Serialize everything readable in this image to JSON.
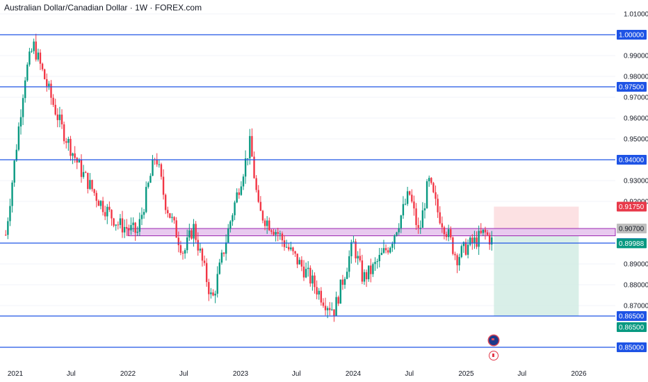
{
  "title": "Australian Dollar/Canadian Dollar · 1W · FOREX.com",
  "colors": {
    "up": "#089981",
    "down": "#f23645",
    "level_line": "#1e53e5",
    "zone_fill": "#e8c9ef",
    "zone_border": "#9c27b0",
    "stop_fill": "#fbd9dc",
    "target_fill": "#d5ede6",
    "grid": "#f0f3fa",
    "axis_text": "#131722"
  },
  "flags": [
    "australia-flag-icon",
    "canada-flag-icon"
  ],
  "chart_data": {
    "type": "candlestick",
    "title": "Australian Dollar/Canadian Dollar · 1W · FOREX.com",
    "ylim": [
      0.85,
      1.01
    ],
    "y_ticks": [
      "1.01000",
      "0.99000",
      "0.98000",
      "0.97000",
      "0.96000",
      "0.95000",
      "0.93000",
      "0.92000",
      "0.89000",
      "0.88000",
      "0.87000"
    ],
    "x_ticks": [
      "2021",
      "Jul",
      "2022",
      "Jul",
      "2023",
      "Jul",
      "2024",
      "Jul",
      "2025",
      "Jul",
      "2026"
    ],
    "horizontal_levels": [
      {
        "price": 1.0,
        "label": "1.00000"
      },
      {
        "price": 0.975,
        "label": "0.97500"
      },
      {
        "price": 0.94,
        "label": "0.94000"
      },
      {
        "price": 0.9,
        "label": "0.90000"
      },
      {
        "price": 0.865,
        "label": "0.86500"
      },
      {
        "price": 0.85,
        "label": "0.85000"
      }
    ],
    "zone": {
      "high": 0.907,
      "low": 0.9035,
      "start": "2022-01",
      "label": "0.90700"
    },
    "position": {
      "entry": 0.907,
      "stop": 0.9175,
      "target": 0.865,
      "start": "2025-04",
      "end": "2026-01"
    },
    "price_labels": [
      {
        "value": "0.91750",
        "kind": "stop"
      },
      {
        "value": "0.90700",
        "kind": "zone"
      },
      {
        "value": "0.89988",
        "kind": "current"
      },
      {
        "value": "0.86500",
        "kind": "target"
      }
    ],
    "anchors": [
      {
        "date": "2020-12",
        "price": 0.904
      },
      {
        "date": "2021-02",
        "price": 0.98
      },
      {
        "date": "2021-03",
        "price": 0.995
      },
      {
        "date": "2021-05",
        "price": 0.968
      },
      {
        "date": "2021-06",
        "price": 0.955
      },
      {
        "date": "2021-08",
        "price": 0.935
      },
      {
        "date": "2021-10",
        "price": 0.92
      },
      {
        "date": "2021-12",
        "price": 0.909
      },
      {
        "date": "2022-02",
        "price": 0.905
      },
      {
        "date": "2022-04",
        "price": 0.943
      },
      {
        "date": "2022-05",
        "price": 0.92
      },
      {
        "date": "2022-07",
        "price": 0.895
      },
      {
        "date": "2022-08",
        "price": 0.908
      },
      {
        "date": "2022-10",
        "price": 0.872
      },
      {
        "date": "2022-12",
        "price": 0.912
      },
      {
        "date": "2023-02",
        "price": 0.948
      },
      {
        "date": "2023-03",
        "price": 0.915
      },
      {
        "date": "2023-05",
        "price": 0.905
      },
      {
        "date": "2023-06",
        "price": 0.898
      },
      {
        "date": "2023-08",
        "price": 0.886
      },
      {
        "date": "2023-10",
        "price": 0.872
      },
      {
        "date": "2023-11",
        "price": 0.868
      },
      {
        "date": "2024-01",
        "price": 0.9
      },
      {
        "date": "2024-02",
        "price": 0.883
      },
      {
        "date": "2024-03",
        "price": 0.887
      },
      {
        "date": "2024-05",
        "price": 0.9
      },
      {
        "date": "2024-06",
        "price": 0.912
      },
      {
        "date": "2024-07",
        "price": 0.924
      },
      {
        "date": "2024-08",
        "price": 0.904
      },
      {
        "date": "2024-09",
        "price": 0.93
      },
      {
        "date": "2024-10",
        "price": 0.915
      },
      {
        "date": "2024-11",
        "price": 0.905
      },
      {
        "date": "2024-12",
        "price": 0.893
      },
      {
        "date": "2025-01",
        "price": 0.898
      },
      {
        "date": "2025-02",
        "price": 0.901
      },
      {
        "date": "2025-03",
        "price": 0.905
      },
      {
        "date": "2025-04",
        "price": 0.8999
      }
    ]
  }
}
